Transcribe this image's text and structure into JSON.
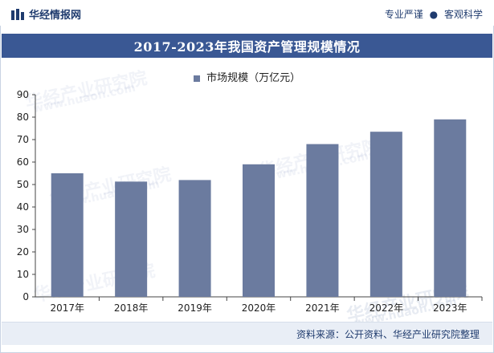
{
  "header": {
    "brand": "华经情报网",
    "tagline_left": "专业严谨",
    "tagline_right": "客观科学"
  },
  "watermark": {
    "text": "华经产业研究院",
    "url": "www.huaon.com"
  },
  "footer": {
    "source": "资料来源：公开资料、华经产业研究院整理"
  },
  "colors": {
    "title_bar": "#3a5894",
    "bar": "#6b7b9f",
    "axis": "#444444",
    "grid": "#e6e6e6"
  },
  "chart_data": {
    "type": "bar",
    "title": "2017-2023年我国资产管理规模情况",
    "xlabel": "",
    "ylabel": "",
    "legend": [
      "市场规模（万亿元）"
    ],
    "legend_position": "top-center",
    "categories": [
      "2017年",
      "2018年",
      "2019年",
      "2020年",
      "2021年",
      "2022年",
      "2023年"
    ],
    "series": [
      {
        "name": "市场规模（万亿元）",
        "values": [
          55,
          51.3,
          52,
          59,
          68,
          73.5,
          79
        ]
      }
    ],
    "ylim": [
      0,
      90
    ],
    "yticks": [
      0,
      10,
      20,
      30,
      40,
      50,
      60,
      70,
      80,
      90
    ],
    "grid": false
  }
}
